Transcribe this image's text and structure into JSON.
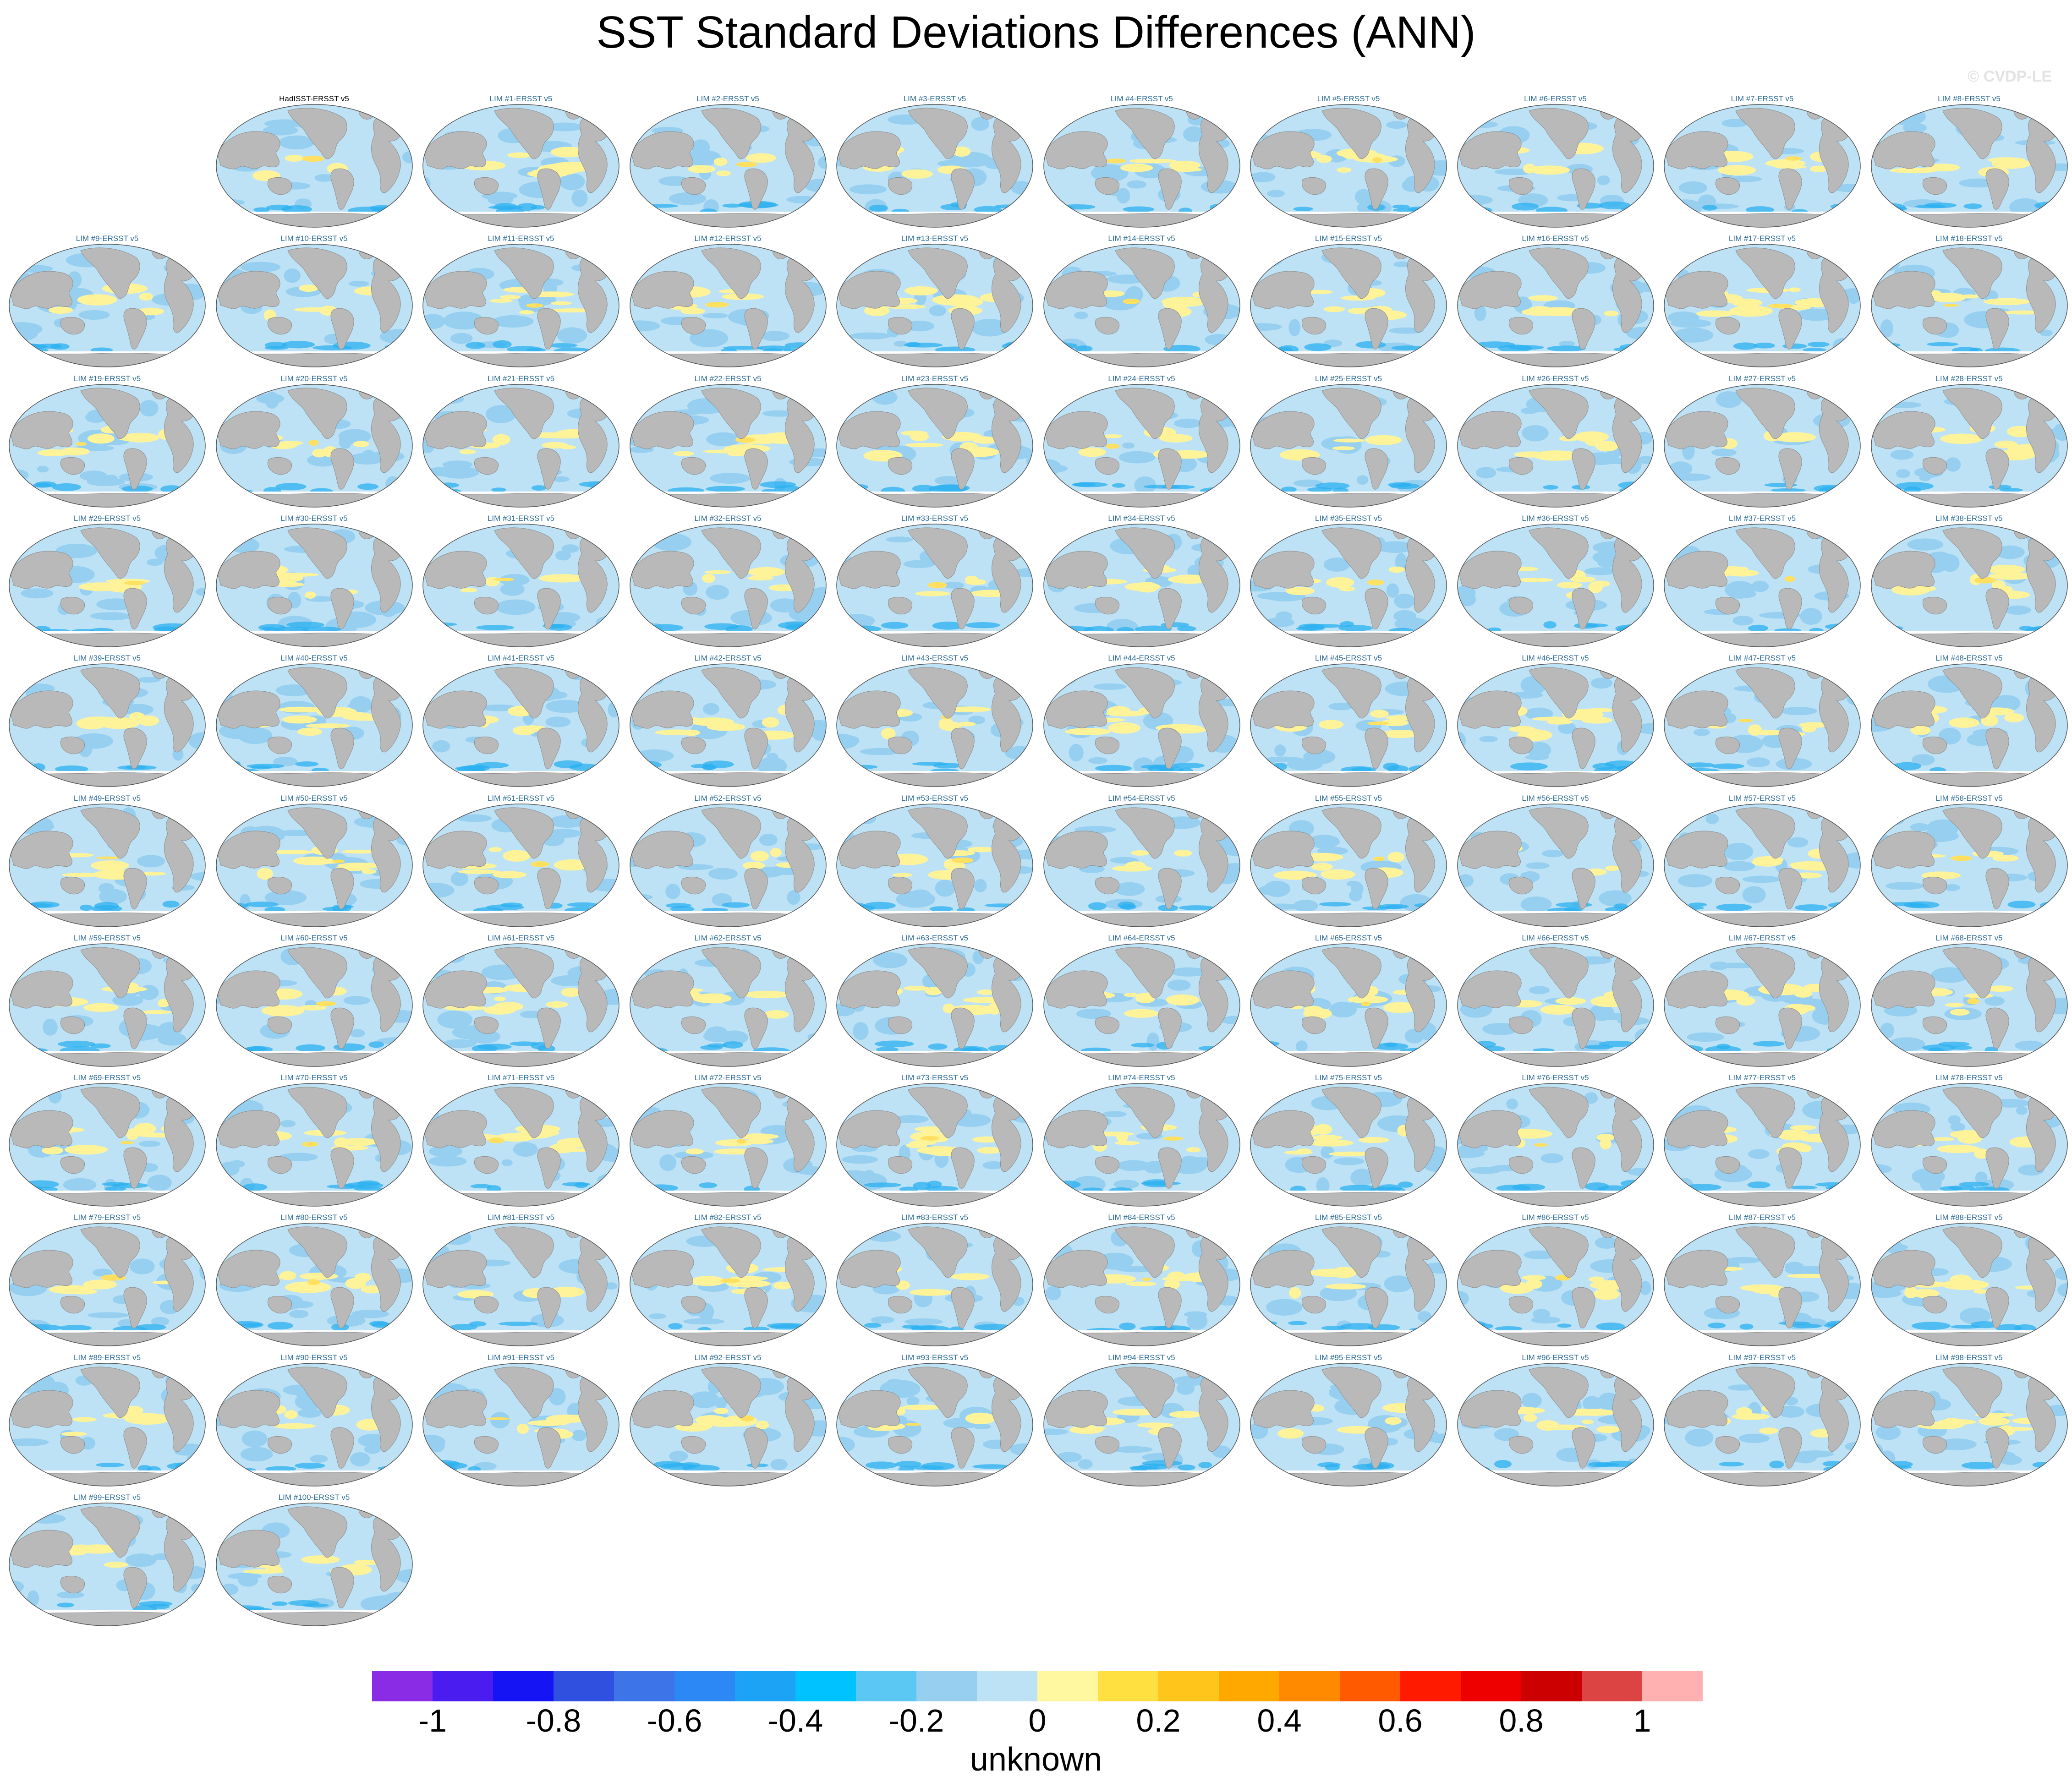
{
  "title": "SST Standard Deviations Differences (ANN)",
  "watermark": "© CVDP-LE",
  "chart_data": {
    "type": "heatmap",
    "description_of_grid": "small-multiple world maps of annual SST standard deviation differences",
    "panels": [
      "HadISST-ERSST v5",
      "LIM #1-ERSST v5",
      "LIM #2-ERSST v5",
      "LIM #3-ERSST v5",
      "LIM #4-ERSST v5",
      "LIM #5-ERSST v5",
      "LIM #6-ERSST v5",
      "LIM #7-ERSST v5",
      "LIM #8-ERSST v5",
      "LIM #9-ERSST v5",
      "LIM #10-ERSST v5",
      "LIM #11-ERSST v5",
      "LIM #12-ERSST v5",
      "LIM #13-ERSST v5",
      "LIM #14-ERSST v5",
      "LIM #15-ERSST v5",
      "LIM #16-ERSST v5",
      "LIM #17-ERSST v5",
      "LIM #18-ERSST v5",
      "LIM #19-ERSST v5",
      "LIM #20-ERSST v5",
      "LIM #21-ERSST v5",
      "LIM #22-ERSST v5",
      "LIM #23-ERSST v5",
      "LIM #24-ERSST v5",
      "LIM #25-ERSST v5",
      "LIM #26-ERSST v5",
      "LIM #27-ERSST v5",
      "LIM #28-ERSST v5",
      "LIM #29-ERSST v5",
      "LIM #30-ERSST v5",
      "LIM #31-ERSST v5",
      "LIM #32-ERSST v5",
      "LIM #33-ERSST v5",
      "LIM #34-ERSST v5",
      "LIM #35-ERSST v5",
      "LIM #36-ERSST v5",
      "LIM #37-ERSST v5",
      "LIM #38-ERSST v5",
      "LIM #39-ERSST v5",
      "LIM #40-ERSST v5",
      "LIM #41-ERSST v5",
      "LIM #42-ERSST v5",
      "LIM #43-ERSST v5",
      "LIM #44-ERSST v5",
      "LIM #45-ERSST v5",
      "LIM #46-ERSST v5",
      "LIM #47-ERSST v5",
      "LIM #48-ERSST v5",
      "LIM #49-ERSST v5",
      "LIM #50-ERSST v5",
      "LIM #51-ERSST v5",
      "LIM #52-ERSST v5",
      "LIM #53-ERSST v5",
      "LIM #54-ERSST v5",
      "LIM #55-ERSST v5",
      "LIM #56-ERSST v5",
      "LIM #57-ERSST v5",
      "LIM #58-ERSST v5",
      "LIM #59-ERSST v5",
      "LIM #60-ERSST v5",
      "LIM #61-ERSST v5",
      "LIM #62-ERSST v5",
      "LIM #63-ERSST v5",
      "LIM #64-ERSST v5",
      "LIM #65-ERSST v5",
      "LIM #66-ERSST v5",
      "LIM #67-ERSST v5",
      "LIM #68-ERSST v5",
      "LIM #69-ERSST v5",
      "LIM #70-ERSST v5",
      "LIM #71-ERSST v5",
      "LIM #72-ERSST v5",
      "LIM #73-ERSST v5",
      "LIM #74-ERSST v5",
      "LIM #75-ERSST v5",
      "LIM #76-ERSST v5",
      "LIM #77-ERSST v5",
      "LIM #78-ERSST v5",
      "LIM #79-ERSST v5",
      "LIM #80-ERSST v5",
      "LIM #81-ERSST v5",
      "LIM #82-ERSST v5",
      "LIM #83-ERSST v5",
      "LIM #84-ERSST v5",
      "LIM #85-ERSST v5",
      "LIM #86-ERSST v5",
      "LIM #87-ERSST v5",
      "LIM #88-ERSST v5",
      "LIM #89-ERSST v5",
      "LIM #90-ERSST v5",
      "LIM #91-ERSST v5",
      "LIM #92-ERSST v5",
      "LIM #93-ERSST v5",
      "LIM #94-ERSST v5",
      "LIM #95-ERSST v5",
      "LIM #96-ERSST v5",
      "LIM #97-ERSST v5",
      "LIM #98-ERSST v5",
      "LIM #99-ERSST v5",
      "LIM #100-ERSST v5"
    ],
    "colorbar": {
      "label": "unknown",
      "levels": [
        -1,
        -0.9,
        -0.8,
        -0.7,
        -0.6,
        -0.5,
        -0.4,
        -0.3,
        -0.2,
        -0.1,
        0,
        0.1,
        0.2,
        0.3,
        0.4,
        0.5,
        0.6,
        0.7,
        0.8,
        0.9,
        1
      ],
      "tick_labels": [
        "-1",
        "-0.8",
        "-0.6",
        "-0.4",
        "-0.2",
        "0",
        "0.2",
        "0.4",
        "0.6",
        "0.8",
        "1"
      ],
      "tick_values": [
        -1,
        -0.8,
        -0.6,
        -0.4,
        -0.2,
        0,
        0.2,
        0.4,
        0.6,
        0.8,
        1
      ],
      "colors": [
        "#8a2be6",
        "#4a1cf0",
        "#1414f5",
        "#3050e0",
        "#3d74e8",
        "#2b88f5",
        "#1ca3f5",
        "#00c2ff",
        "#5ac8f2",
        "#96cff0",
        "#bde2f5",
        "#fff8a0",
        "#ffe040",
        "#ffc51a",
        "#ffa800",
        "#ff8a00",
        "#ff5a00",
        "#ff1a00",
        "#ee0000",
        "#cc0000",
        "#dc4444",
        "#ffb0b0"
      ]
    }
  },
  "colors": {
    "land": "#b9b9b9",
    "ocean_base": "#bde2f5",
    "ocean_negative": "#96cff0",
    "ocean_strong_negative": "#2bb0f0",
    "ocean_positive": "#fff39a",
    "ocean_strong_positive": "#ffe060",
    "sea_ice": "#ffffff",
    "panel_title": "#2c6b96"
  }
}
